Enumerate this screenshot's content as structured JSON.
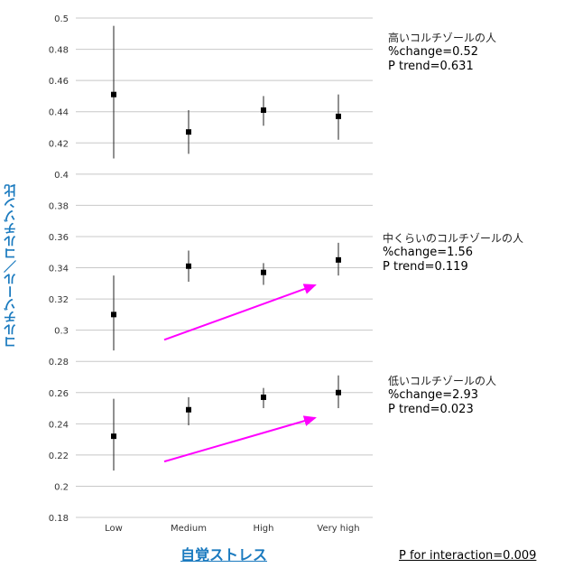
{
  "chart_data": {
    "type": "scatter",
    "title": "",
    "xlabel": "自覚ストレス",
    "ylabel": "コルチゾール／コルチゾン比",
    "categories": [
      "Low",
      "Medium",
      "High",
      "Very high"
    ],
    "ylim": [
      0.18,
      0.5
    ],
    "yticks": [
      0.5,
      0.48,
      0.46,
      0.44,
      0.42,
      0.4,
      0.38,
      0.36,
      0.34,
      0.32,
      0.3,
      0.28,
      0.26,
      0.24,
      0.22,
      0.2,
      0.18
    ],
    "grid": true,
    "series": [
      {
        "name": "高いコルチゾールの人",
        "values": [
          0.451,
          0.427,
          0.441,
          0.437
        ],
        "lower": [
          0.41,
          0.413,
          0.431,
          0.422
        ],
        "upper": [
          0.495,
          0.441,
          0.45,
          0.451
        ],
        "pct_change": "%change=0.52",
        "p_trend": "P trend=0.631",
        "arrow": false
      },
      {
        "name": "中くらいのコルチゾールの人",
        "values": [
          0.31,
          0.341,
          0.337,
          0.345
        ],
        "lower": [
          0.287,
          0.331,
          0.329,
          0.335
        ],
        "upper": [
          0.335,
          0.351,
          0.343,
          0.356
        ],
        "pct_change": "%change=1.56",
        "p_trend": "P trend=0.119",
        "arrow": true
      },
      {
        "name": "低いコルチゾールの人",
        "values": [
          0.232,
          0.249,
          0.257,
          0.26
        ],
        "lower": [
          0.21,
          0.239,
          0.25,
          0.25
        ],
        "upper": [
          0.256,
          0.257,
          0.263,
          0.271
        ],
        "pct_change": "%change=2.93",
        "p_trend": "P trend=0.023",
        "arrow": true
      }
    ],
    "p_interaction": "P for interaction=0.009",
    "colors": {
      "marker": "#000000",
      "whisker": "#222222",
      "grid": "#c8c8c8",
      "arrow": "#ff00ff",
      "axis_label": "#1a7abf"
    }
  }
}
